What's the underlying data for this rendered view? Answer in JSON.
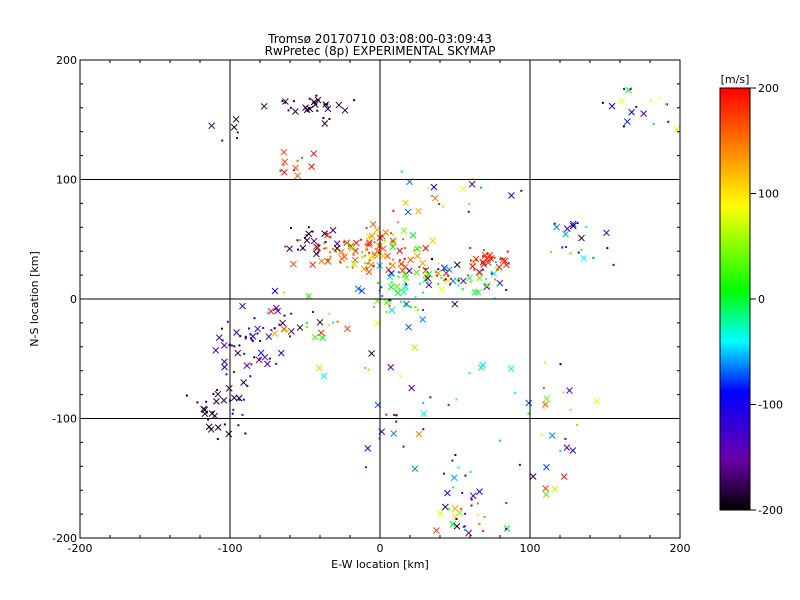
{
  "header": {
    "title": "Tromsø 20170710 03:08:00-03:09:43",
    "subtitle": "RwPretec (8p) EXPERIMENTAL SKYMAP"
  },
  "chart_data": {
    "type": "scatter",
    "xlabel": "E-W location [km]",
    "ylabel": "N-S location [km]",
    "xlim": [
      -200,
      200
    ],
    "ylim": [
      -200,
      200
    ],
    "xticks": [
      "-200",
      "-100",
      "0",
      "100",
      "200"
    ],
    "yticks": [
      "-200",
      "-100",
      "0",
      "100",
      "200"
    ],
    "grid": true,
    "colorbar": {
      "label": "[m/s]",
      "range": [
        -200,
        200
      ],
      "ticks": [
        "200",
        "100",
        "0",
        "-100",
        "-200"
      ],
      "tick_values": [
        200,
        100,
        0,
        -100,
        -200
      ],
      "colors": [
        "#000000",
        "#6a00a8",
        "#0000ff",
        "#00ffff",
        "#00ff00",
        "#ffff00",
        "#ff8000",
        "#ff0000"
      ],
      "position": "right"
    },
    "markers": {
      "cross": "velocity sample (large)",
      "dot": "velocity sample (small)"
    },
    "clusters": [
      {
        "cx": -45,
        "cy": 160,
        "sx": 14,
        "sy": 6,
        "n": 30,
        "vmin": -200,
        "vmax": -170
      },
      {
        "cx": -100,
        "cy": 140,
        "sx": 6,
        "sy": 6,
        "n": 6,
        "vmin": -200,
        "vmax": -150
      },
      {
        "cx": -60,
        "cy": 112,
        "sx": 8,
        "sy": 5,
        "n": 12,
        "vmin": 160,
        "vmax": 200
      },
      {
        "cx": -40,
        "cy": 48,
        "sx": 10,
        "sy": 6,
        "n": 25,
        "vmin": -200,
        "vmax": -160
      },
      {
        "cx": -15,
        "cy": 40,
        "sx": 18,
        "sy": 8,
        "n": 70,
        "vmin": 140,
        "vmax": 200
      },
      {
        "cx": 5,
        "cy": 45,
        "sx": 15,
        "sy": 12,
        "n": 50,
        "vmin": 0,
        "vmax": 200
      },
      {
        "cx": 10,
        "cy": 5,
        "sx": 12,
        "sy": 10,
        "n": 40,
        "vmin": -80,
        "vmax": 60
      },
      {
        "cx": 50,
        "cy": 18,
        "sx": 18,
        "sy": 8,
        "n": 70,
        "vmin": -200,
        "vmax": 200
      },
      {
        "cx": 70,
        "cy": 32,
        "sx": 7,
        "sy": 5,
        "n": 25,
        "vmin": 170,
        "vmax": 200
      },
      {
        "cx": -85,
        "cy": -35,
        "sx": 12,
        "sy": 12,
        "n": 35,
        "vmin": -200,
        "vmax": -120
      },
      {
        "cx": -50,
        "cy": -25,
        "sx": 15,
        "sy": 15,
        "n": 30,
        "vmin": -200,
        "vmax": 200
      },
      {
        "cx": -110,
        "cy": -95,
        "sx": 10,
        "sy": 10,
        "n": 25,
        "vmin": -200,
        "vmax": -170
      },
      {
        "cx": -95,
        "cy": -60,
        "sx": 8,
        "sy": 20,
        "n": 25,
        "vmin": -200,
        "vmax": -80
      },
      {
        "cx": 55,
        "cy": -180,
        "sx": 12,
        "sy": 12,
        "n": 30,
        "vmin": -200,
        "vmax": 200
      },
      {
        "cx": 120,
        "cy": -110,
        "sx": 12,
        "sy": 25,
        "n": 25,
        "vmin": -200,
        "vmax": 200
      },
      {
        "cx": 45,
        "cy": -110,
        "sx": 25,
        "sy": 30,
        "n": 30,
        "vmin": -200,
        "vmax": 0
      },
      {
        "cx": 175,
        "cy": 165,
        "sx": 14,
        "sy": 12,
        "n": 20,
        "vmin": -200,
        "vmax": 100
      },
      {
        "cx": 130,
        "cy": 50,
        "sx": 12,
        "sy": 10,
        "n": 20,
        "vmin": -200,
        "vmax": 60
      },
      {
        "cx": 45,
        "cy": 85,
        "sx": 25,
        "sy": 10,
        "n": 20,
        "vmin": -150,
        "vmax": 200
      },
      {
        "cx": 0,
        "cy": -50,
        "sx": 20,
        "sy": 40,
        "n": 20,
        "vmin": -200,
        "vmax": 200
      }
    ]
  }
}
